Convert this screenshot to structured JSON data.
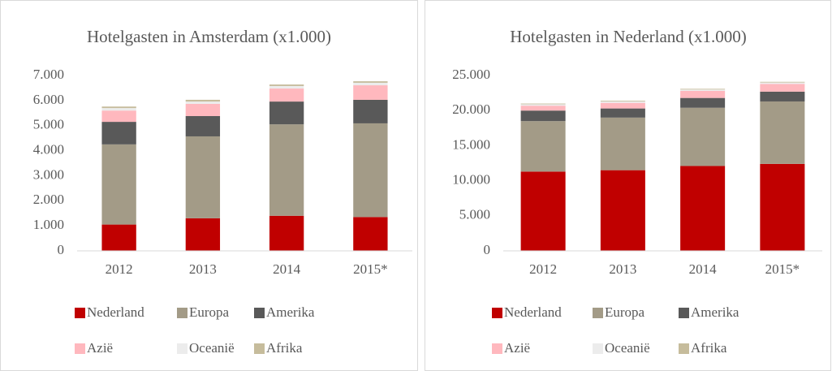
{
  "chart_data": [
    {
      "type": "bar",
      "stacked": true,
      "title": "Hotelgasten in Amsterdam (x1.000)",
      "categories": [
        "2012",
        "2013",
        "2014",
        "2015*"
      ],
      "series": [
        {
          "name": "Nederland",
          "color": "#c00000",
          "values": [
            1050,
            1300,
            1400,
            1350
          ]
        },
        {
          "name": "Europa",
          "color": "#a39b87",
          "values": [
            3200,
            3270,
            3650,
            3740
          ]
        },
        {
          "name": "Amerika",
          "color": "#595959",
          "values": [
            900,
            810,
            910,
            940
          ]
        },
        {
          "name": "Azië",
          "color": "#ffb8be",
          "values": [
            450,
            490,
            520,
            580
          ]
        },
        {
          "name": "Oceanië",
          "color": "#ececec",
          "values": [
            100,
            90,
            100,
            100
          ]
        },
        {
          "name": "Afrika",
          "color": "#c6bc9c",
          "values": [
            60,
            70,
            60,
            60
          ]
        }
      ],
      "ylim": [
        0,
        7000
      ],
      "yticks": [
        0,
        {
          "value": 1000,
          "label": "1.000"
        },
        {
          "value": 2000,
          "label": "2.000"
        },
        {
          "value": 3000,
          "label": "3.000"
        },
        {
          "value": 4000,
          "label": "4.000"
        },
        {
          "value": 5000,
          "label": "5.000"
        },
        {
          "value": 6000,
          "label": "6.000"
        },
        {
          "value": 7000,
          "label": "7.000"
        }
      ],
      "grid": false,
      "legend": "bottom"
    },
    {
      "type": "bar",
      "stacked": true,
      "title": "Hotelgasten in Nederland (x1.000)",
      "categories": [
        "2012",
        "2013",
        "2014",
        "2015*"
      ],
      "series": [
        {
          "name": "Nederland",
          "color": "#c00000",
          "values": [
            11300,
            11500,
            12100,
            12400
          ]
        },
        {
          "name": "Europa",
          "color": "#a39b87",
          "values": [
            7200,
            7500,
            8300,
            8900
          ]
        },
        {
          "name": "Amerika",
          "color": "#595959",
          "values": [
            1500,
            1300,
            1400,
            1400
          ]
        },
        {
          "name": "Azië",
          "color": "#ffb8be",
          "values": [
            700,
            800,
            1000,
            1100
          ]
        },
        {
          "name": "Oceanië",
          "color": "#ececec",
          "values": [
            200,
            200,
            200,
            200
          ]
        },
        {
          "name": "Afrika",
          "color": "#c6bc9c",
          "values": [
            100,
            100,
            100,
            100
          ]
        }
      ],
      "ylim": [
        0,
        25000
      ],
      "yticks": [
        0,
        {
          "value": 5000,
          "label": "5.000"
        },
        {
          "value": 10000,
          "label": "10.000"
        },
        {
          "value": 15000,
          "label": "15.000"
        },
        {
          "value": 20000,
          "label": "20.000"
        },
        {
          "value": 25000,
          "label": "25.000"
        }
      ],
      "grid": false,
      "legend": "bottom"
    }
  ]
}
